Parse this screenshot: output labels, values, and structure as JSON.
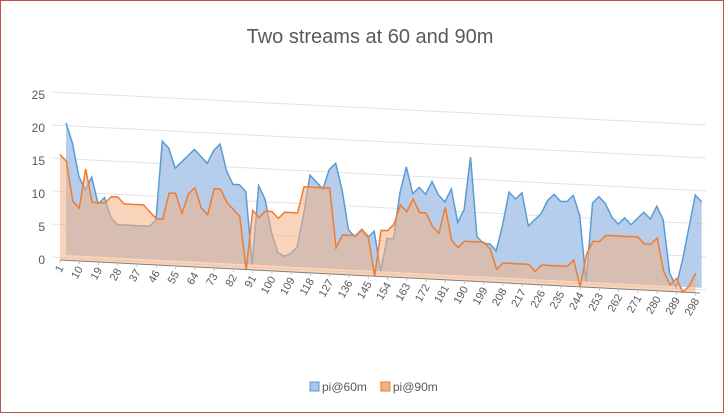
{
  "chart_data": {
    "type": "area3d",
    "title": "Two streams at 60 and 90m",
    "x": [
      1,
      4,
      7,
      10,
      13,
      16,
      19,
      22,
      25,
      28,
      31,
      34,
      37,
      40,
      43,
      46,
      49,
      52,
      55,
      58,
      61,
      64,
      67,
      70,
      73,
      76,
      79,
      82,
      85,
      88,
      91,
      94,
      97,
      100,
      103,
      106,
      109,
      112,
      115,
      118,
      121,
      124,
      127,
      130,
      133,
      136,
      139,
      142,
      145,
      148,
      151,
      154,
      157,
      160,
      163,
      166,
      169,
      172,
      175,
      178,
      181,
      184,
      187,
      190,
      193,
      196,
      199,
      202,
      205,
      208,
      211,
      214,
      217,
      220,
      223,
      226,
      229,
      232,
      235,
      238,
      241,
      244,
      247,
      250,
      253,
      256,
      259,
      262,
      265,
      268,
      271,
      274,
      277,
      280,
      283,
      286,
      289,
      292,
      295,
      298
    ],
    "xlim": [
      1,
      300
    ],
    "xticks": [
      1,
      10,
      19,
      28,
      37,
      46,
      55,
      64,
      73,
      82,
      91,
      100,
      109,
      118,
      127,
      136,
      145,
      154,
      163,
      172,
      181,
      190,
      199,
      208,
      217,
      226,
      235,
      244,
      253,
      262,
      271,
      280,
      289,
      298
    ],
    "ylim": [
      0,
      25
    ],
    "yticks": [
      0,
      5,
      10,
      15,
      20,
      25
    ],
    "grid": true,
    "legend": "bottom",
    "series": [
      {
        "name": "pi@60m",
        "color": "#5b9bd5",
        "fill": "#a9c6e8",
        "values": [
          20,
          17,
          12,
          10,
          12,
          8,
          9,
          6,
          5,
          5,
          5,
          5,
          5,
          5,
          6,
          18,
          17,
          14,
          15,
          16,
          17,
          16,
          15,
          17,
          18,
          14,
          12,
          12,
          11,
          0,
          12,
          10,
          5,
          2,
          1.5,
          2,
          3,
          8,
          14,
          13,
          12,
          15,
          16,
          12,
          6,
          5,
          6,
          5,
          6,
          0,
          5,
          5,
          12,
          16,
          12,
          13,
          12,
          14,
          12,
          11,
          13,
          8,
          10,
          18,
          6,
          5,
          5,
          4,
          8,
          13,
          12,
          13,
          8,
          9,
          10,
          12,
          13,
          12,
          12,
          13,
          10,
          0,
          12,
          13,
          12,
          10,
          9,
          10,
          9,
          10,
          11,
          10,
          12,
          10,
          2,
          0,
          4,
          9,
          14,
          13
        ]
      },
      {
        "name": "pi@90m",
        "color": "#ed7d31",
        "fill": "#f4b183",
        "values": [
          16,
          15,
          9,
          8,
          14,
          9,
          9,
          9,
          10,
          10,
          9,
          9,
          9,
          9,
          8,
          7,
          7,
          11,
          11,
          8,
          11,
          12,
          9,
          8,
          12,
          12,
          10,
          9,
          8,
          0,
          9,
          8,
          9,
          9,
          8,
          9,
          9,
          9,
          13,
          13,
          13,
          13,
          13,
          4,
          6,
          6,
          6,
          7,
          6,
          0,
          7,
          7,
          8,
          11,
          10,
          12,
          10,
          10,
          8,
          7,
          11,
          6,
          5,
          6,
          6,
          6,
          6,
          5,
          2,
          3,
          3,
          3,
          3,
          3,
          2,
          3,
          3,
          3,
          3,
          3,
          4,
          0,
          5,
          7,
          7,
          8,
          8,
          8,
          8,
          8,
          8,
          7,
          7,
          8,
          3,
          1,
          2,
          0,
          1,
          3
        ]
      }
    ]
  }
}
